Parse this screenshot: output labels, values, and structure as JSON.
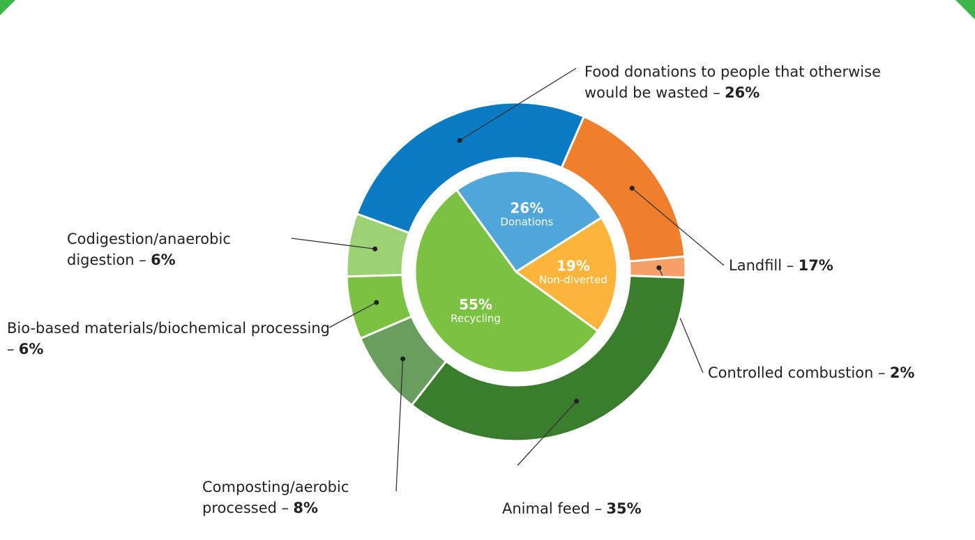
{
  "chart_data": [
    {
      "type": "donut",
      "categories": [
        "Food donations to people that otherwise would be wasted –",
        "Landfill –",
        "Controlled combustion –",
        "Animal feed –",
        "Composting/aerobic processed –",
        "Bio-based materials/biochemical processing –",
        "Codigestion/anaerobic digestion –"
      ],
      "values": [
        26,
        17,
        2,
        35,
        8,
        6,
        6
      ],
      "value_labels": [
        "26%",
        "17%",
        "2%",
        "35%",
        "8%",
        "6%",
        "6%"
      ],
      "colors": [
        "#0a7bc2",
        "#f07f2d",
        "#f4a068",
        "#3a7d2c",
        "#6a9e5e",
        "#7cc242",
        "#9dd274"
      ]
    },
    {
      "type": "pie",
      "categories": [
        "Donations",
        "Non-diverted",
        "Recycling"
      ],
      "values": [
        26,
        19,
        55
      ],
      "value_labels": [
        "26%",
        "19%",
        "55%"
      ],
      "colors": [
        "#4fa6d8",
        "#fcb53a",
        "#7cc242"
      ]
    }
  ]
}
